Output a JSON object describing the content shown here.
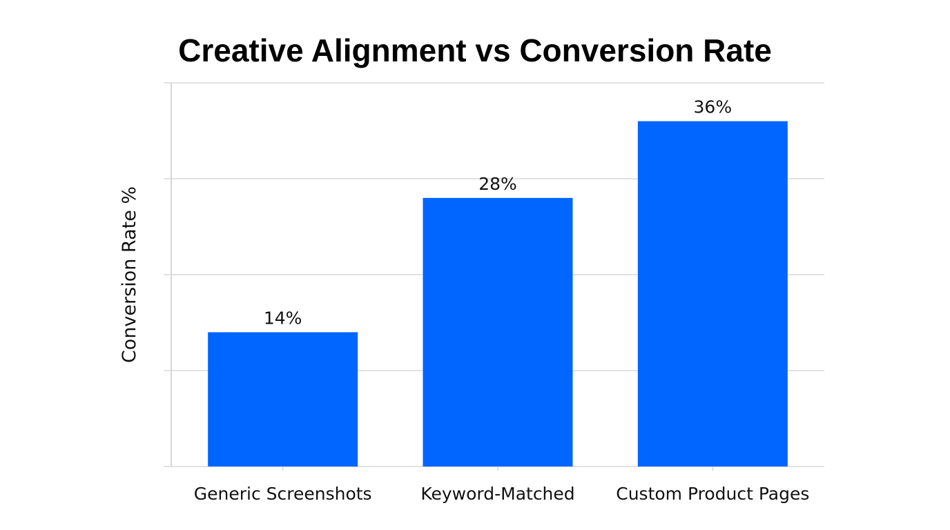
{
  "chart_data": {
    "type": "bar",
    "title": "Creative Alignment vs Conversion Rate",
    "xlabel": "",
    "ylabel": "Conversion Rate %",
    "categories": [
      "Generic Screenshots",
      "Keyword-Matched",
      "Custom Product Pages"
    ],
    "values": [
      14,
      28,
      36
    ],
    "data_labels": [
      "14%",
      "28%",
      "36%"
    ],
    "ylim": [
      0,
      40
    ],
    "yticks": [
      0,
      10,
      20,
      30,
      40
    ],
    "ytick_labels_shown": false,
    "grid": "horizontal",
    "bar_color": "#0066FF",
    "grid_color": "#D9D9D9"
  }
}
